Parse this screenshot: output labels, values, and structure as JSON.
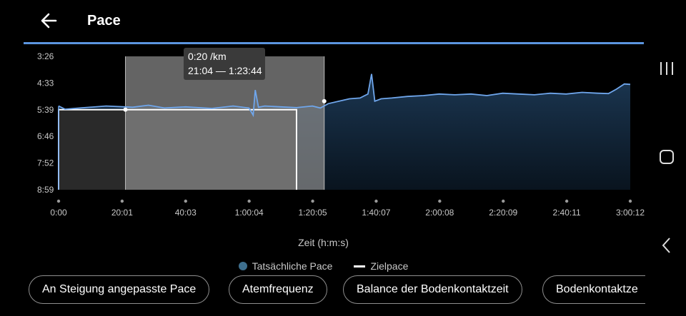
{
  "header": {
    "title": "Pace"
  },
  "colors": {
    "accent": "#5b95e0",
    "series": "#6fa6ec",
    "target": "#ffffff",
    "selection": "#8a8a8a",
    "tooltip_bg": "#3a3a3a"
  },
  "chart_data": {
    "type": "line",
    "xlabel": "Zeit (h:m:s)",
    "ylabel": "",
    "y_reversed": true,
    "xlim_seconds": [
      0,
      10812
    ],
    "ylim_seconds_per_km": [
      206,
      539
    ],
    "x_ticks": [
      "0:00",
      "20:01",
      "40:03",
      "1:00:04",
      "1:20:05",
      "1:40:07",
      "2:00:08",
      "2:20:09",
      "2:40:11",
      "3:00:12"
    ],
    "y_ticks": [
      "3:26",
      "4:33",
      "5:39",
      "6:46",
      "7:52",
      "8:59"
    ],
    "series": [
      {
        "name": "Tatsächliche Pace",
        "x_seconds": [
          0,
          120,
          400,
          900,
          1400,
          1700,
          2000,
          2400,
          2900,
          3300,
          3600,
          3680,
          3720,
          3780,
          3900,
          4200,
          4500,
          4800,
          4950,
          5100,
          5300,
          5500,
          5700,
          5850,
          5920,
          5980,
          6100,
          6300,
          6600,
          6900,
          7200,
          7500,
          7800,
          8100,
          8400,
          8700,
          9000,
          9300,
          9600,
          9900,
          10200,
          10400,
          10550,
          10700,
          10812
        ],
        "pace_seconds_per_km": [
          330,
          338,
          335,
          330,
          333,
          328,
          335,
          332,
          336,
          330,
          335,
          353,
          290,
          333,
          330,
          332,
          334,
          330,
          335,
          324,
          318,
          312,
          310,
          300,
          250,
          318,
          312,
          310,
          306,
          304,
          300,
          302,
          300,
          304,
          298,
          300,
          302,
          298,
          300,
          296,
          298,
          299,
          288,
          275,
          276
        ]
      },
      {
        "name": "Zielpace",
        "x_seconds": [
          0,
          4500
        ],
        "pace_seconds_per_km": [
          339,
          339
        ]
      }
    ],
    "selection": {
      "start_seconds": 1264,
      "end_seconds": 5024,
      "label_pace": "0:20 /km",
      "label_range": "21:04 — 1:23:44"
    }
  },
  "legend": {
    "actual": "Tatsächliche Pace",
    "target": "Zielpace"
  },
  "chips": [
    "An Steigung angepasste Pace",
    "Atemfrequenz",
    "Balance der Bodenkontaktzeit",
    "Bodenkontaktze"
  ]
}
